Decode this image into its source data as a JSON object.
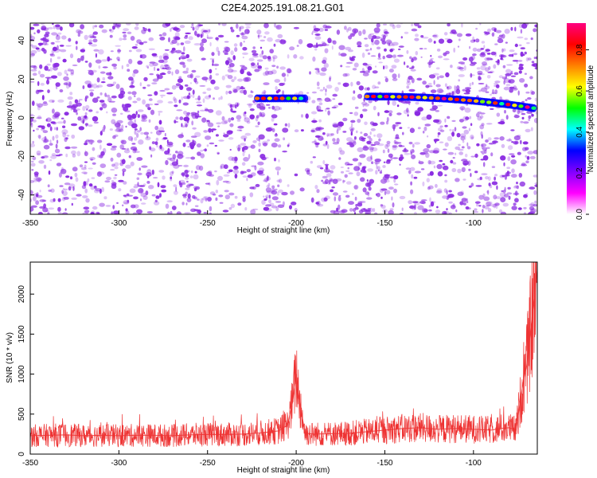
{
  "title": "C2E4.2025.191.08.21.G01",
  "colors": {
    "snr_line": "#ee3333",
    "spectrum_dots": "#8a2be2",
    "axis": "#000000"
  },
  "colorbar": {
    "label": "Normalized spectral amplitude",
    "range": [
      0.0,
      0.93
    ],
    "ticks": [
      "0.0",
      "0.2",
      "0.4",
      "0.6",
      "0.8"
    ],
    "tick_values": [
      0.0,
      0.2,
      0.4,
      0.6,
      0.8
    ],
    "colormap": [
      "#ffffff",
      "#ff00ff",
      "#8000ff",
      "#0000ff",
      "#00ffff",
      "#00ff00",
      "#ffff00",
      "#ff8000",
      "#ff0000",
      "#ff0080"
    ]
  },
  "chart_data": [
    {
      "type": "heatmap",
      "name_key": "spectrogram",
      "xlabel": "Height of straight line (km)",
      "ylabel": "Frequency (Hz)",
      "xlim": [
        -350,
        -64
      ],
      "ylim": [
        -50,
        49
      ],
      "xticks": [
        "-350",
        "-300",
        "-250",
        "-200",
        "-150",
        "-100"
      ],
      "xtick_values": [
        -350,
        -300,
        -250,
        -200,
        -150,
        -100
      ],
      "yticks": [
        "-40",
        "-20",
        "0",
        "20",
        "40"
      ],
      "ytick_values": [
        -40,
        -20,
        0,
        20,
        40
      ],
      "signal_tracks": [
        {
          "x_start": -222,
          "x_end": -195,
          "frequency": 10,
          "peak_amplitude": 0.85
        },
        {
          "x_start": -160,
          "x_end": -66,
          "frequency_start": 11,
          "frequency_end": 5,
          "peak_amplitude": 0.93
        }
      ],
      "background_noise_amplitude": [
        0.05,
        0.45
      ],
      "grid": false
    },
    {
      "type": "line",
      "name_key": "snr",
      "xlabel": "Height of straight line (km)",
      "ylabel": "SNR (10 * v/v)",
      "xlim": [
        -350,
        -64
      ],
      "ylim": [
        0,
        2400
      ],
      "xticks": [
        "-350",
        "-300",
        "-250",
        "-200",
        "-150",
        "-100"
      ],
      "xtick_values": [
        -350,
        -300,
        -250,
        -200,
        -150,
        -100
      ],
      "yticks": [
        "0",
        "500",
        "1000",
        "1500",
        "2000"
      ],
      "ytick_values": [
        0,
        500,
        1000,
        1500,
        2000
      ],
      "grid": false,
      "series": [
        {
          "x": [
            -350,
            -340,
            -330,
            -320,
            -310,
            -300,
            -290,
            -280,
            -270,
            -260,
            -250,
            -240,
            -230,
            -220,
            -210,
            -205,
            -202,
            -200,
            -198,
            -195,
            -190,
            -180,
            -170,
            -160,
            -150,
            -140,
            -130,
            -120,
            -110,
            -100,
            -90,
            -85,
            -80,
            -76,
            -74,
            -72,
            -70,
            -68,
            -66,
            -64
          ],
          "values": [
            230,
            235,
            240,
            230,
            235,
            230,
            235,
            235,
            230,
            240,
            245,
            245,
            250,
            265,
            290,
            360,
            650,
            1000,
            650,
            260,
            250,
            255,
            260,
            280,
            300,
            320,
            330,
            310,
            320,
            310,
            300,
            320,
            330,
            300,
            600,
            900,
            1100,
            1500,
            1900,
            2300
          ]
        }
      ]
    }
  ]
}
